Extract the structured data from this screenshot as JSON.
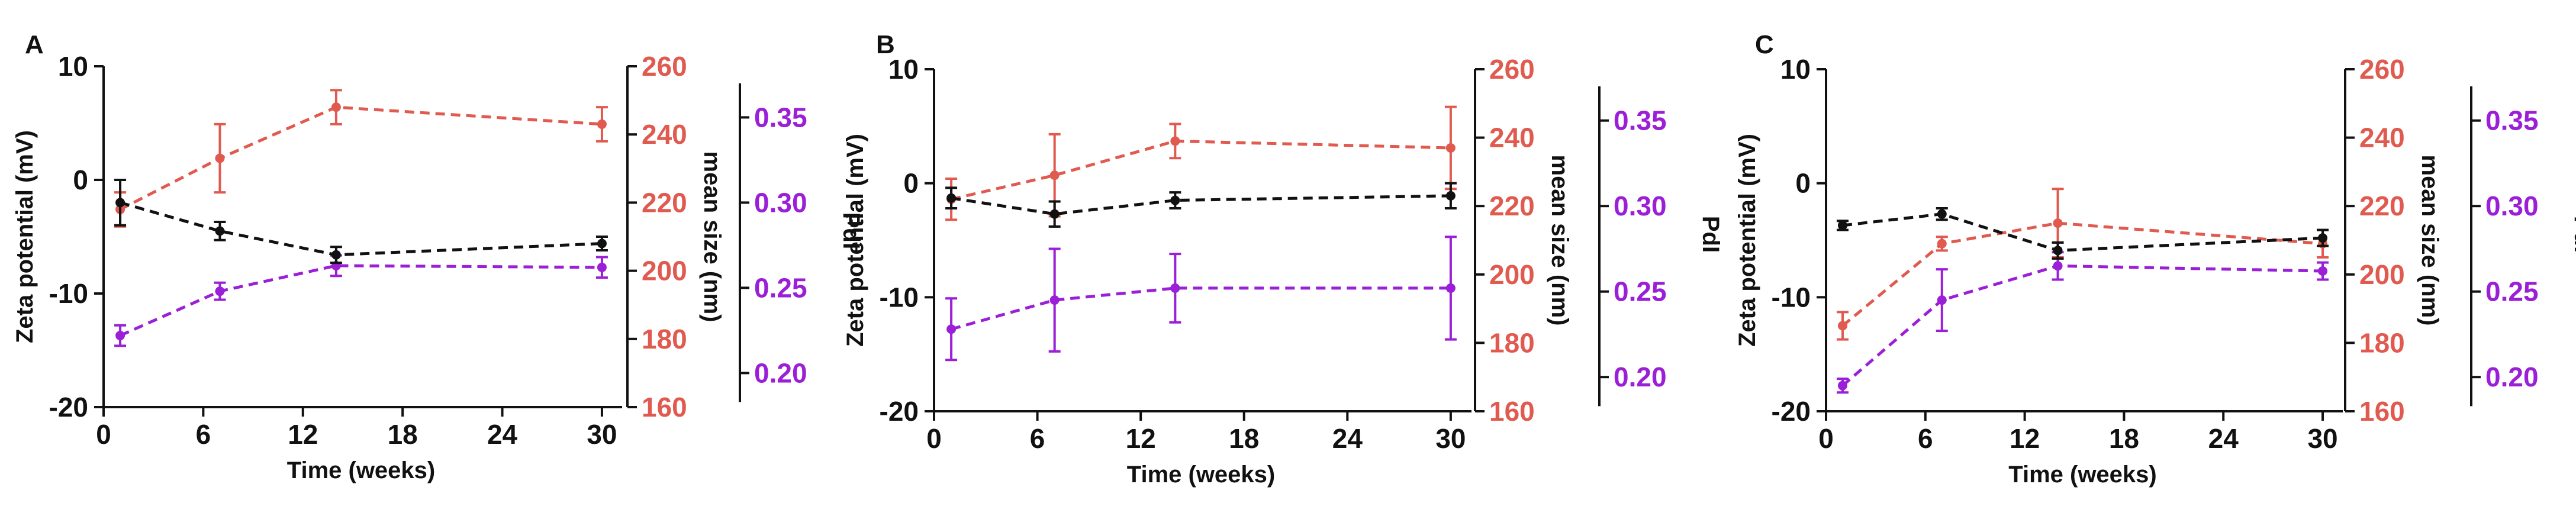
{
  "colors": {
    "zeta": "#111111",
    "size": "#e05a4f",
    "pdi": "#9b1fd6",
    "axis": "#111111"
  },
  "chart_data": [
    {
      "type": "line",
      "panel_label": "A",
      "xlabel": "Time (weeks)",
      "x_ticks": [
        "0",
        "6",
        "12",
        "18",
        "24",
        "30"
      ],
      "xlim": [
        0,
        31
      ],
      "axes": {
        "zeta": {
          "label": "Zeta potential (mV)",
          "ylim": [
            -20,
            10
          ],
          "ticks": [
            "10",
            "0",
            "-10",
            "-20"
          ]
        },
        "size": {
          "label": "mean size (nm)",
          "ylim": [
            160,
            260
          ],
          "ticks": [
            "260",
            "240",
            "220",
            "200",
            "180",
            "160"
          ]
        },
        "pdi": {
          "label": "PdI",
          "ylim": [
            0.18,
            0.38
          ],
          "ticks": [
            "0.35",
            "0.30",
            "0.25",
            "0.20"
          ]
        }
      },
      "series": [
        {
          "name": "Zeta potential",
          "axis": "zeta",
          "x": [
            1,
            7,
            14,
            30
          ],
          "values": [
            -2,
            -4.5,
            -6.6,
            -5.6
          ],
          "errors": [
            2,
            0.8,
            0.7,
            0.6
          ]
        },
        {
          "name": "mean size",
          "axis": "size",
          "x": [
            1,
            7,
            14,
            30
          ],
          "values": [
            218,
            233,
            248,
            243
          ],
          "errors": [
            5,
            10,
            5,
            5
          ]
        },
        {
          "name": "PdI",
          "axis": "pdi",
          "x": [
            1,
            7,
            14,
            30
          ],
          "values": [
            0.222,
            0.248,
            0.263,
            0.262
          ],
          "errors": [
            0.006,
            0.005,
            0.006,
            0.006
          ]
        }
      ]
    },
    {
      "type": "line",
      "panel_label": "B",
      "xlabel": "Time (weeks)",
      "x_ticks": [
        "0",
        "6",
        "12",
        "18",
        "24",
        "30"
      ],
      "xlim": [
        0,
        31
      ],
      "axes": {
        "zeta": {
          "label": "Zeta potential (mV)",
          "ylim": [
            -20,
            10
          ],
          "ticks": [
            "10",
            "0",
            "-10",
            "-20"
          ]
        },
        "size": {
          "label": "mean size (nm)",
          "ylim": [
            160,
            260
          ],
          "ticks": [
            "260",
            "240",
            "220",
            "200",
            "180",
            "160"
          ]
        },
        "pdi": {
          "label": "PdI",
          "ylim": [
            0.18,
            0.38
          ],
          "ticks": [
            "0.35",
            "0.30",
            "0.25",
            "0.20"
          ]
        }
      },
      "series": [
        {
          "name": "Zeta potential",
          "axis": "zeta",
          "x": [
            1,
            7,
            14,
            30
          ],
          "values": [
            -1.3,
            -2.7,
            -1.5,
            -1.1
          ],
          "errors": [
            0.9,
            1.1,
            0.7,
            1.1
          ]
        },
        {
          "name": "mean size",
          "axis": "size",
          "x": [
            1,
            7,
            14,
            30
          ],
          "values": [
            222,
            229,
            239,
            237
          ],
          "errors": [
            6,
            12,
            5,
            12
          ]
        },
        {
          "name": "PdI",
          "axis": "pdi",
          "x": [
            1,
            7,
            14,
            30
          ],
          "values": [
            0.228,
            0.245,
            0.252,
            0.252
          ],
          "errors": [
            0.018,
            0.03,
            0.02,
            0.03
          ]
        }
      ]
    },
    {
      "type": "line",
      "panel_label": "C",
      "xlabel": "Time (weeks)",
      "x_ticks": [
        "0",
        "6",
        "12",
        "18",
        "24",
        "30"
      ],
      "xlim": [
        0,
        31
      ],
      "axes": {
        "zeta": {
          "label": "Zeta potential (mV)",
          "ylim": [
            -20,
            10
          ],
          "ticks": [
            "10",
            "0",
            "-10",
            "-20"
          ]
        },
        "size": {
          "label": "mean size (nm)",
          "ylim": [
            160,
            260
          ],
          "ticks": [
            "260",
            "240",
            "220",
            "200",
            "180",
            "160"
          ]
        },
        "pdi": {
          "label": "PdI",
          "ylim": [
            0.18,
            0.38
          ],
          "ticks": [
            "0.35",
            "0.30",
            "0.25",
            "0.20"
          ]
        }
      },
      "series": [
        {
          "name": "Zeta potential",
          "axis": "zeta",
          "x": [
            1,
            7,
            14,
            30
          ],
          "values": [
            -3.7,
            -2.7,
            -5.9,
            -4.8
          ],
          "errors": [
            0.4,
            0.5,
            0.7,
            0.7
          ]
        },
        {
          "name": "mean size",
          "axis": "size",
          "x": [
            1,
            7,
            14,
            30
          ],
          "values": [
            185,
            209,
            215,
            209
          ],
          "errors": [
            4,
            2,
            10,
            4
          ]
        },
        {
          "name": "PdI",
          "axis": "pdi",
          "x": [
            1,
            7,
            14,
            30
          ],
          "values": [
            0.195,
            0.245,
            0.265,
            0.262
          ],
          "errors": [
            0.004,
            0.018,
            0.008,
            0.005
          ]
        }
      ]
    }
  ]
}
